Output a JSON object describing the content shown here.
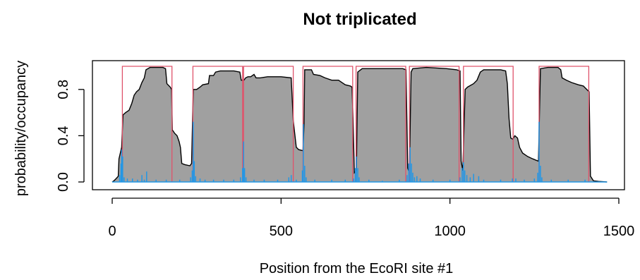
{
  "chart_data": {
    "type": "area",
    "title": "Not triplicated",
    "xlabel": "Position from the EcoRI site #1",
    "ylabel": "probability/occupancy",
    "xlim": [
      0,
      1500
    ],
    "ylim": [
      0,
      1
    ],
    "x_ticks": [
      {
        "value": 0,
        "label": "0"
      },
      {
        "value": 500,
        "label": "500"
      },
      {
        "value": 1000,
        "label": "1000"
      },
      {
        "value": 1500,
        "label": "1500"
      }
    ],
    "y_ticks": [
      {
        "value": 0.0,
        "label": "0.0"
      },
      {
        "value": 0.4,
        "label": "0.4"
      },
      {
        "value": 0.8,
        "label": "0.8"
      }
    ],
    "colors": {
      "occupancy_fill": "#a0a0a0",
      "occupancy_line": "#000000",
      "nucleosome_boxes": "#df536b",
      "start_probability": "#2297e6"
    },
    "series": [
      {
        "kind": "occupancy",
        "points": [
          [
            0,
            0.0
          ],
          [
            5,
            0.01
          ],
          [
            12,
            0.03
          ],
          [
            18,
            0.05
          ],
          [
            20,
            0.2
          ],
          [
            24,
            0.25
          ],
          [
            28,
            0.3
          ],
          [
            32,
            0.58
          ],
          [
            40,
            0.6
          ],
          [
            50,
            0.62
          ],
          [
            58,
            0.68
          ],
          [
            65,
            0.75
          ],
          [
            72,
            0.78
          ],
          [
            80,
            0.8
          ],
          [
            88,
            0.86
          ],
          [
            95,
            0.9
          ],
          [
            100,
            0.97
          ],
          [
            112,
            0.99
          ],
          [
            150,
            0.99
          ],
          [
            158,
            0.98
          ],
          [
            162,
            0.85
          ],
          [
            172,
            0.82
          ],
          [
            176,
            0.8
          ],
          [
            178,
            0.45
          ],
          [
            185,
            0.42
          ],
          [
            192,
            0.4
          ],
          [
            198,
            0.35
          ],
          [
            202,
            0.3
          ],
          [
            206,
            0.16
          ],
          [
            215,
            0.15
          ],
          [
            230,
            0.14
          ],
          [
            235,
            0.16
          ],
          [
            240,
            0.8
          ],
          [
            250,
            0.8
          ],
          [
            260,
            0.82
          ],
          [
            268,
            0.84
          ],
          [
            285,
            0.85
          ],
          [
            288,
            0.92
          ],
          [
            300,
            0.92
          ],
          [
            306,
            0.95
          ],
          [
            320,
            0.96
          ],
          [
            360,
            0.96
          ],
          [
            378,
            0.95
          ],
          [
            382,
            0.88
          ],
          [
            390,
            0.88
          ],
          [
            395,
            0.9
          ],
          [
            402,
            0.91
          ],
          [
            410,
            0.91
          ],
          [
            420,
            0.93
          ],
          [
            426,
            0.9
          ],
          [
            438,
            0.9
          ],
          [
            460,
            0.91
          ],
          [
            500,
            0.91
          ],
          [
            530,
            0.9
          ],
          [
            536,
            0.53
          ],
          [
            545,
            0.3
          ],
          [
            552,
            0.28
          ],
          [
            565,
            0.27
          ],
          [
            568,
            0.5
          ],
          [
            570,
            0.97
          ],
          [
            590,
            0.97
          ],
          [
            596,
            0.93
          ],
          [
            615,
            0.92
          ],
          [
            630,
            0.9
          ],
          [
            650,
            0.88
          ],
          [
            670,
            0.88
          ],
          [
            690,
            0.84
          ],
          [
            705,
            0.83
          ],
          [
            710,
            0.82
          ],
          [
            713,
            0.55
          ],
          [
            717,
            0.08
          ],
          [
            723,
            0.1
          ],
          [
            727,
            0.95
          ],
          [
            740,
            0.98
          ],
          [
            800,
            0.98
          ],
          [
            860,
            0.98
          ],
          [
            870,
            0.97
          ],
          [
            875,
            0.12
          ],
          [
            880,
            0.08
          ],
          [
            885,
            0.95
          ],
          [
            890,
            0.98
          ],
          [
            930,
            0.99
          ],
          [
            990,
            0.98
          ],
          [
            1020,
            0.97
          ],
          [
            1030,
            0.96
          ],
          [
            1033,
            0.18
          ],
          [
            1038,
            0.1
          ],
          [
            1045,
            0.8
          ],
          [
            1052,
            0.82
          ],
          [
            1070,
            0.85
          ],
          [
            1080,
            0.88
          ],
          [
            1090,
            0.95
          ],
          [
            1100,
            0.97
          ],
          [
            1150,
            0.97
          ],
          [
            1165,
            0.96
          ],
          [
            1170,
            0.85
          ],
          [
            1175,
            0.55
          ],
          [
            1180,
            0.38
          ],
          [
            1186,
            0.37
          ],
          [
            1192,
            0.4
          ],
          [
            1200,
            0.38
          ],
          [
            1206,
            0.3
          ],
          [
            1215,
            0.25
          ],
          [
            1230,
            0.22
          ],
          [
            1245,
            0.2
          ],
          [
            1262,
            0.18
          ],
          [
            1268,
            0.98
          ],
          [
            1290,
            0.99
          ],
          [
            1320,
            0.99
          ],
          [
            1328,
            0.97
          ],
          [
            1332,
            0.9
          ],
          [
            1345,
            0.88
          ],
          [
            1360,
            0.86
          ],
          [
            1380,
            0.84
          ],
          [
            1395,
            0.83
          ],
          [
            1405,
            0.8
          ],
          [
            1412,
            0.78
          ],
          [
            1416,
            0.05
          ],
          [
            1425,
            0.01
          ],
          [
            1440,
            0.005
          ],
          [
            1465,
            0.0
          ]
        ]
      },
      {
        "kind": "nucleosome_boxes",
        "ranges": [
          [
            30,
            177
          ],
          [
            239,
            386
          ],
          [
            389,
            536
          ],
          [
            565,
            712
          ],
          [
            722,
            869
          ],
          [
            880,
            1027
          ],
          [
            1040,
            1187
          ],
          [
            1264,
            1411
          ]
        ],
        "height": 1.0
      },
      {
        "kind": "start_probability",
        "spikes": [
          [
            22,
            0.06
          ],
          [
            26,
            0.16
          ],
          [
            28,
            0.28
          ],
          [
            31,
            0.22
          ],
          [
            35,
            0.04
          ],
          [
            45,
            0.03
          ],
          [
            60,
            0.03
          ],
          [
            75,
            0.02
          ],
          [
            88,
            0.06
          ],
          [
            95,
            0.02
          ],
          [
            102,
            0.09
          ],
          [
            130,
            0.02
          ],
          [
            160,
            0.02
          ],
          [
            200,
            0.02
          ],
          [
            232,
            0.04
          ],
          [
            237,
            0.1
          ],
          [
            240,
            0.52
          ],
          [
            243,
            0.18
          ],
          [
            247,
            0.05
          ],
          [
            260,
            0.03
          ],
          [
            275,
            0.02
          ],
          [
            300,
            0.02
          ],
          [
            330,
            0.02
          ],
          [
            360,
            0.02
          ],
          [
            380,
            0.04
          ],
          [
            386,
            0.12
          ],
          [
            389,
            0.35
          ],
          [
            392,
            0.12
          ],
          [
            396,
            0.04
          ],
          [
            420,
            0.02
          ],
          [
            450,
            0.02
          ],
          [
            490,
            0.02
          ],
          [
            523,
            0.04
          ],
          [
            530,
            0.06
          ],
          [
            545,
            0.02
          ],
          [
            563,
            0.1
          ],
          [
            566,
            0.5
          ],
          [
            570,
            0.14
          ],
          [
            574,
            0.04
          ],
          [
            600,
            0.02
          ],
          [
            650,
            0.02
          ],
          [
            690,
            0.02
          ],
          [
            715,
            0.03
          ],
          [
            720,
            0.12
          ],
          [
            723,
            0.22
          ],
          [
            727,
            0.12
          ],
          [
            731,
            0.04
          ],
          [
            760,
            0.02
          ],
          [
            800,
            0.01
          ],
          [
            850,
            0.02
          ],
          [
            873,
            0.06
          ],
          [
            878,
            0.16
          ],
          [
            882,
            0.3
          ],
          [
            886,
            0.16
          ],
          [
            890,
            0.08
          ],
          [
            895,
            0.04
          ],
          [
            902,
            0.05
          ],
          [
            912,
            0.03
          ],
          [
            950,
            0.02
          ],
          [
            1000,
            0.02
          ],
          [
            1030,
            0.04
          ],
          [
            1036,
            0.12
          ],
          [
            1040,
            0.17
          ],
          [
            1044,
            0.1
          ],
          [
            1050,
            0.06
          ],
          [
            1060,
            0.04
          ],
          [
            1070,
            0.07
          ],
          [
            1085,
            0.05
          ],
          [
            1100,
            0.02
          ],
          [
            1150,
            0.02
          ],
          [
            1185,
            0.03
          ],
          [
            1195,
            0.03
          ],
          [
            1220,
            0.02
          ],
          [
            1250,
            0.03
          ],
          [
            1260,
            0.08
          ],
          [
            1264,
            0.52
          ],
          [
            1268,
            0.14
          ],
          [
            1272,
            0.04
          ],
          [
            1300,
            0.02
          ],
          [
            1350,
            0.02
          ],
          [
            1400,
            0.02
          ]
        ]
      }
    ]
  }
}
